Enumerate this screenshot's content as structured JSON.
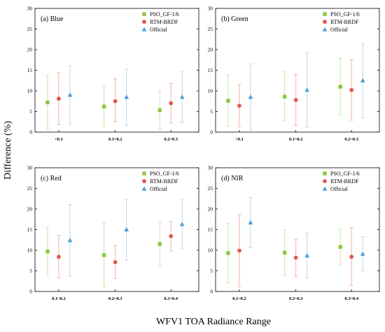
{
  "figure": {
    "ylabel": "Difference (%)",
    "xlabel": "WFV1 TOA Radiance Range"
  },
  "colors": {
    "pso": "#8cc63f",
    "rtm": "#e2574c",
    "official": "#4f9fd6",
    "pso_err": "#cfe3a8",
    "rtm_err": "#f1b3a6",
    "official_err": "#b9d9ef"
  },
  "chart_data": [
    {
      "type": "scatter",
      "panel_label": "(a)  Blue",
      "categories": [
        "<0.1",
        "0.1~0.2",
        "0.2~0.3"
      ],
      "ylim": [
        0,
        30
      ],
      "yticks": [
        "0",
        "5",
        "10",
        "15",
        "20",
        "25",
        "30"
      ],
      "legend": [
        "PSO_GF-1/6",
        "RTM-BRDF",
        "Official"
      ],
      "series": [
        {
          "name": "PSO_GF-1/6",
          "values": [
            7.2,
            6.2,
            5.3
          ],
          "lower": [
            0.8,
            1.2,
            0.8
          ],
          "upper": [
            13.8,
            11.2,
            10.0
          ]
        },
        {
          "name": "RTM-BRDF",
          "values": [
            8.1,
            7.5,
            7.0
          ],
          "lower": [
            1.8,
            2.5,
            2.2
          ],
          "upper": [
            14.4,
            12.9,
            11.8
          ]
        },
        {
          "name": "Official",
          "values": [
            9.0,
            8.5,
            8.5
          ],
          "lower": [
            1.8,
            1.7,
            2.4
          ],
          "upper": [
            16.1,
            15.3,
            14.6
          ]
        }
      ]
    },
    {
      "type": "scatter",
      "panel_label": "(b)  Green",
      "categories": [
        "<0.1",
        "0.1~0.2",
        "0.2~0.3"
      ],
      "ylim": [
        0,
        30
      ],
      "yticks": [
        "0",
        "5",
        "10",
        "15",
        "20",
        "25",
        "30"
      ],
      "legend": [
        "PSO_GF-1/6",
        "RTM-BRDF",
        "Official"
      ],
      "series": [
        {
          "name": "PSO_GF-1/6",
          "values": [
            7.6,
            8.6,
            11.0
          ],
          "lower": [
            1.4,
            2.7,
            4.1
          ],
          "upper": [
            13.8,
            14.6,
            17.9
          ]
        },
        {
          "name": "RTM-BRDF",
          "values": [
            6.4,
            7.8,
            10.2
          ],
          "lower": [
            1.3,
            1.6,
            2.9
          ],
          "upper": [
            11.5,
            14.0,
            17.5
          ]
        },
        {
          "name": "Official",
          "values": [
            8.5,
            10.2,
            12.5
          ],
          "lower": [
            0.5,
            1.2,
            3.5
          ],
          "upper": [
            16.5,
            19.2,
            21.5
          ]
        }
      ]
    },
    {
      "type": "scatter",
      "panel_label": "(c)  Red",
      "categories": [
        "0.1~0.2",
        "0.2~0.3",
        "0.3~0.4"
      ],
      "ylim": [
        0,
        30
      ],
      "yticks": [
        "0",
        "5",
        "10",
        "15",
        "20",
        "25",
        "30"
      ],
      "legend": [
        "PSO_GF-1/6",
        "RTM-BRDF",
        "Official"
      ],
      "series": [
        {
          "name": "PSO_GF-1/6",
          "values": [
            9.7,
            8.8,
            11.5
          ],
          "lower": [
            3.9,
            1.0,
            6.1
          ],
          "upper": [
            15.6,
            16.7,
            16.9
          ]
        },
        {
          "name": "RTM-BRDF",
          "values": [
            8.4,
            7.1,
            13.4
          ],
          "lower": [
            3.3,
            3.2,
            9.8
          ],
          "upper": [
            13.6,
            11.1,
            17.0
          ]
        },
        {
          "name": "Official",
          "values": [
            12.4,
            15.0,
            16.3
          ],
          "lower": [
            3.7,
            7.6,
            10.3
          ],
          "upper": [
            21.1,
            22.4,
            22.2
          ]
        }
      ]
    },
    {
      "type": "scatter",
      "panel_label": "(d)  NIR",
      "categories": [
        "0.1~0.2",
        "0.2~0.3",
        "0.3~0.4"
      ],
      "ylim": [
        0,
        30
      ],
      "yticks": [
        "0",
        "5",
        "10",
        "15",
        "20",
        "25",
        "30"
      ],
      "legend": [
        "PSO_GF-1/6",
        "RTM-BRDF",
        "Official"
      ],
      "series": [
        {
          "name": "PSO_GF-1/6",
          "values": [
            9.3,
            9.4,
            10.8
          ],
          "lower": [
            2.1,
            3.9,
            6.4
          ],
          "upper": [
            16.5,
            14.9,
            15.1
          ]
        },
        {
          "name": "RTM-BRDF",
          "values": [
            9.9,
            8.2,
            8.4
          ],
          "lower": [
            1.2,
            3.7,
            1.4
          ],
          "upper": [
            18.6,
            12.7,
            15.5
          ]
        },
        {
          "name": "Official",
          "values": [
            16.7,
            8.7,
            9.1
          ],
          "lower": [
            10.6,
            3.3,
            5.0
          ],
          "upper": [
            22.8,
            14.2,
            13.3
          ]
        }
      ]
    }
  ]
}
